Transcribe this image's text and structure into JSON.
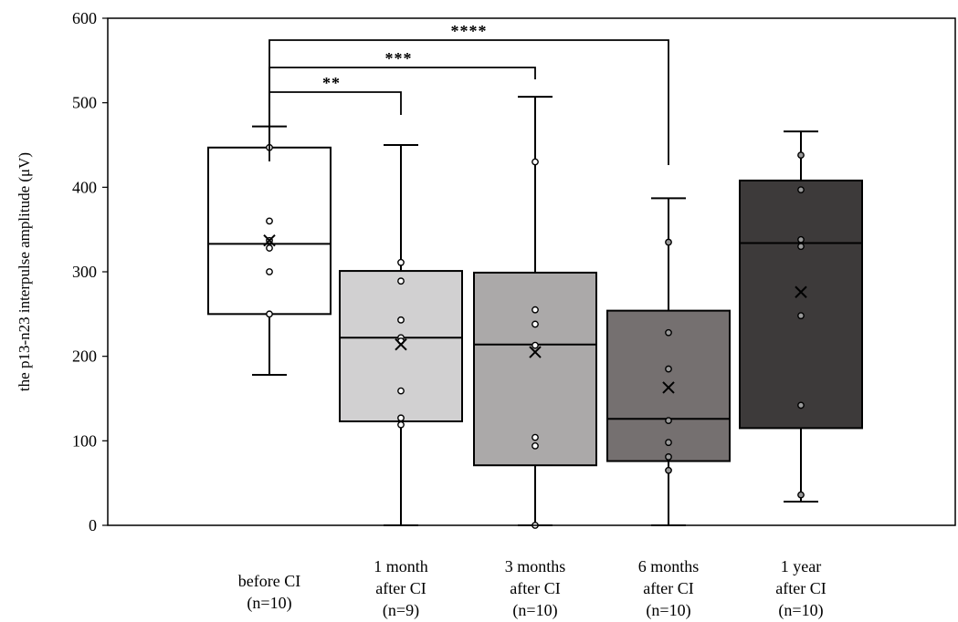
{
  "chart_data": {
    "type": "box",
    "ylabel": "the p13-n23 interpulse amplitude (μV)",
    "ylim": [
      0,
      600
    ],
    "yticks": [
      0,
      100,
      200,
      300,
      400,
      500,
      600
    ],
    "grid": false,
    "groups": [
      {
        "label_lines": [
          "before CI",
          "(n=10)"
        ],
        "fill": "#ffffff",
        "whisker_low": 178,
        "q1": 250,
        "median": 333,
        "q3": 447,
        "whisker_high": 472,
        "mean": 337,
        "points": [
          447,
          360,
          337,
          328,
          300,
          250
        ]
      },
      {
        "label_lines": [
          "1 month",
          "after CI",
          "(n=9)"
        ],
        "fill": "#d1d0d1",
        "whisker_low": 0,
        "q1": 123,
        "median": 222,
        "q3": 301,
        "whisker_high": 450,
        "mean": 214,
        "points": [
          311,
          289,
          243,
          222,
          218,
          159,
          127,
          119
        ]
      },
      {
        "label_lines": [
          "3 months",
          "after CI",
          "(n=10)"
        ],
        "fill": "#aba9a9",
        "whisker_low": 0,
        "q1": 71,
        "median": 214,
        "q3": 299,
        "whisker_high": 507,
        "mean": 205,
        "points": [
          430,
          255,
          238,
          213,
          104,
          94,
          0
        ]
      },
      {
        "label_lines": [
          "6 months",
          "after CI",
          "(n=10)"
        ],
        "fill": "#757070",
        "whisker_low": 0,
        "q1": 76,
        "median": 126,
        "q3": 254,
        "whisker_high": 387,
        "mean": 163,
        "points": [
          335,
          228,
          185,
          124,
          98,
          81,
          65
        ]
      },
      {
        "label_lines": [
          "1 year",
          "after CI",
          "(n=10)"
        ],
        "fill": "#3d3a3a",
        "whisker_low": 28,
        "q1": 115,
        "median": 334,
        "q3": 408,
        "whisker_high": 466,
        "mean": 276,
        "points": [
          438,
          397,
          338,
          330,
          248,
          142,
          36
        ]
      }
    ],
    "significance": [
      {
        "from": 0,
        "to": 1,
        "label": "**"
      },
      {
        "from": 0,
        "to": 2,
        "label": "***"
      },
      {
        "from": 0,
        "to": 3,
        "label": "****"
      }
    ]
  }
}
